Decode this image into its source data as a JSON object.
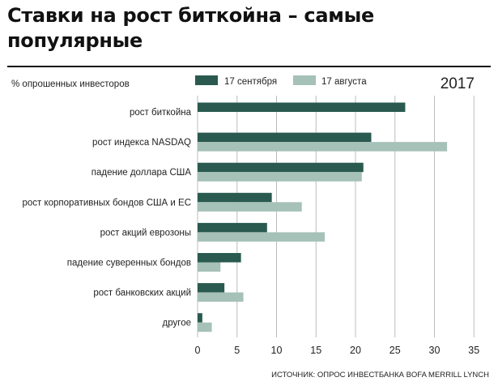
{
  "header": {
    "title_line1": "Ставки на рост биткойна – самые",
    "title_line2": "популярные"
  },
  "colors": {
    "series_sep": "#2a5a4f",
    "series_aug": "#a6c1b7",
    "grid": "#bcbcbc"
  },
  "chart_data": {
    "type": "bar",
    "orientation": "horizontal",
    "subtitle": "% опрошенных инвесторов",
    "year": "2017",
    "source": "ИСТОЧНИК: ОПРОС ИНВЕСТБАНКА BOFA MERRILL LYNCH",
    "categories": [
      "рост биткойна",
      "рост индекса NASDAQ",
      "падение доллара США",
      "рост корпоративных бондов США и ЕС",
      "рост акций еврозоны",
      "падение суверенных бондов",
      "рост банковских акций",
      "другое"
    ],
    "series": [
      {
        "name": "17 сентября",
        "values": [
          26.3,
          22,
          21,
          9.4,
          8.8,
          5.5,
          3.4,
          0.6
        ]
      },
      {
        "name": "17 августа",
        "values": [
          0,
          31.6,
          20.8,
          13.2,
          16.1,
          2.9,
          5.8,
          1.8
        ]
      }
    ],
    "xticks": [
      0,
      5,
      10,
      15,
      20,
      25,
      30,
      35
    ],
    "xlim": [
      0,
      35
    ],
    "grid": true,
    "legend_position": "top"
  }
}
